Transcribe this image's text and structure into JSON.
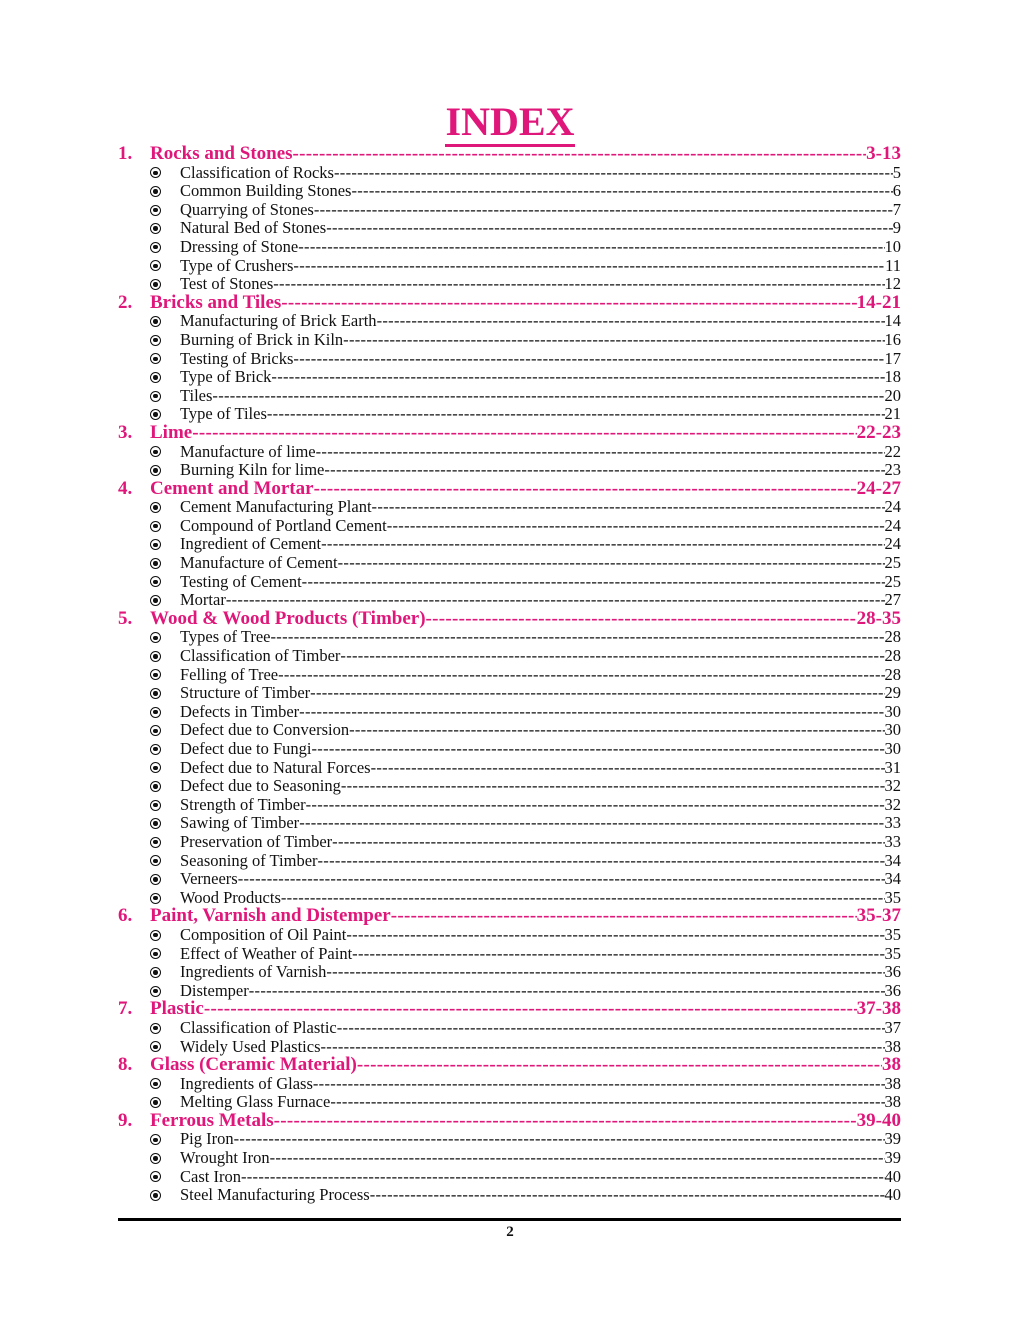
{
  "title": "INDEX",
  "accent_color": "#e0177a",
  "bullet_icon": "radio-bullet-icon",
  "sections": [
    {
      "num": "1.",
      "title": "Rocks and Stones",
      "pages": "3-13",
      "items": [
        {
          "label": "Classification of Rocks",
          "page": "5"
        },
        {
          "label": "Common Building Stones",
          "page": "6"
        },
        {
          "label": "Quarrying of Stones",
          "page": "7"
        },
        {
          "label": "Natural Bed of Stones",
          "page": "9"
        },
        {
          "label": "Dressing of Stone",
          "page": "10"
        },
        {
          "label": "Type of Crushers",
          "page": "11"
        },
        {
          "label": "Test of Stones",
          "page": "12"
        }
      ]
    },
    {
      "num": "2.",
      "title": "Bricks and Tiles",
      "pages": "14-21",
      "items": [
        {
          "label": "Manufacturing of Brick Earth",
          "page": "14"
        },
        {
          "label": "Burning of Brick in Kiln",
          "page": "16"
        },
        {
          "label": "Testing of Bricks",
          "page": "17"
        },
        {
          "label": "Type of Brick",
          "page": "18"
        },
        {
          "label": "Tiles",
          "page": "20"
        },
        {
          "label": "Type of Tiles",
          "page": "21"
        }
      ]
    },
    {
      "num": "3.",
      "title": "Lime",
      "pages": "22-23",
      "items": [
        {
          "label": "Manufacture of lime",
          "page": "22"
        },
        {
          "label": "Burning Kiln for lime",
          "page": "23"
        }
      ]
    },
    {
      "num": "4.",
      "title": "Cement and Mortar",
      "pages": "24-27",
      "items": [
        {
          "label": "Cement Manufacturing Plant",
          "page": "24"
        },
        {
          "label": "Compound of Portland Cement",
          "page": "24"
        },
        {
          "label": "Ingredient of Cement",
          "page": "24"
        },
        {
          "label": "Manufacture of Cement",
          "page": "25"
        },
        {
          "label": "Testing of Cement",
          "page": "25"
        },
        {
          "label": "Mortar",
          "page": "27"
        }
      ]
    },
    {
      "num": "5.",
      "title": "Wood & Wood Products (Timber)",
      "pages": "28-35",
      "items": [
        {
          "label": "Types of Tree",
          "page": "28"
        },
        {
          "label": "Classification of Timber",
          "page": "28"
        },
        {
          "label": "Felling of Tree",
          "page": "28"
        },
        {
          "label": "Structure of Timber",
          "page": "29"
        },
        {
          "label": "Defects in Timber",
          "page": "30"
        },
        {
          "label": "Defect due to Conversion",
          "page": "30"
        },
        {
          "label": "Defect due to Fungi",
          "page": "30"
        },
        {
          "label": "Defect due to Natural Forces",
          "page": "31"
        },
        {
          "label": "Defect due to Seasoning",
          "page": "32"
        },
        {
          "label": "Strength of Timber",
          "page": "32"
        },
        {
          "label": "Sawing of Timber",
          "page": "33"
        },
        {
          "label": "Preservation of Timber",
          "page": "33"
        },
        {
          "label": "Seasoning of Timber",
          "page": "34"
        },
        {
          "label": "Verneers",
          "page": "34"
        },
        {
          "label": "Wood Products",
          "page": "35"
        }
      ]
    },
    {
      "num": "6.",
      "title": "Paint, Varnish and Distemper",
      "pages": "35-37",
      "items": [
        {
          "label": "Composition of Oil Paint",
          "page": "35"
        },
        {
          "label": "Effect of Weather of Paint",
          "page": "35"
        },
        {
          "label": "Ingredients of Varnish",
          "page": "36"
        },
        {
          "label": "Distemper",
          "page": "36"
        }
      ]
    },
    {
      "num": "7.",
      "title": "Plastic",
      "pages": "37-38",
      "items": [
        {
          "label": "Classification of Plastic",
          "page": "37"
        },
        {
          "label": "Widely Used Plastics",
          "page": "38"
        }
      ]
    },
    {
      "num": "8.",
      "title": "Glass (Ceramic Material)",
      "pages": "38",
      "items": [
        {
          "label": "Ingredients of Glass",
          "page": "38"
        },
        {
          "label": "Melting Glass Furnace",
          "page": "38"
        }
      ]
    },
    {
      "num": "9.",
      "title": "Ferrous Metals",
      "pages": "39-40",
      "items": [
        {
          "label": "Pig Iron",
          "page": "39"
        },
        {
          "label": "Wrought Iron",
          "page": "39"
        },
        {
          "label": "Cast Iron",
          "page": "40"
        },
        {
          "label": "Steel Manufacturing Process",
          "page": "40"
        }
      ]
    }
  ],
  "page_number": "2"
}
